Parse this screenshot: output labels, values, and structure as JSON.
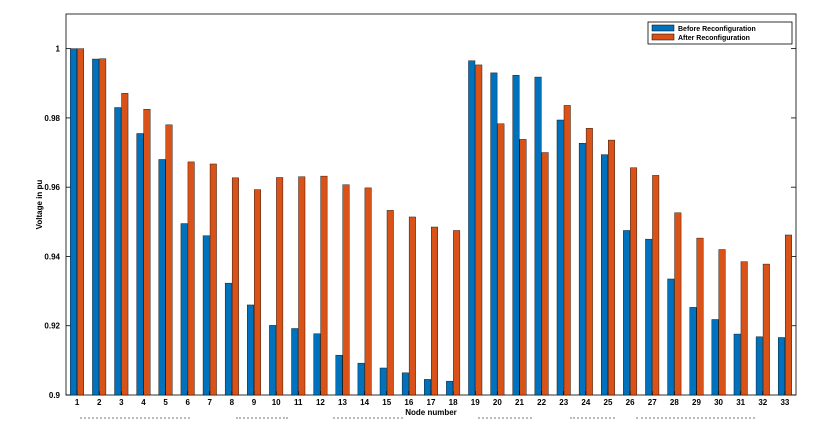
{
  "chart_data": {
    "type": "bar",
    "title": "",
    "xlabel": "Node number",
    "ylabel": "Voltage in pu",
    "ylim": [
      0.9,
      1.01
    ],
    "yticks": [
      "0.9",
      "0.92",
      "0.94",
      "0.96",
      "0.98",
      "1"
    ],
    "categories": [
      "1",
      "2",
      "3",
      "4",
      "5",
      "6",
      "7",
      "8",
      "9",
      "10",
      "11",
      "12",
      "13",
      "14",
      "15",
      "16",
      "17",
      "18",
      "19",
      "20",
      "21",
      "22",
      "23",
      "24",
      "25",
      "26",
      "27",
      "28",
      "29",
      "30",
      "31",
      "32",
      "33"
    ],
    "legend_position": "top-right",
    "series": [
      {
        "name": "Before Reconfiguration",
        "color": "#0072BD",
        "values": [
          1.0,
          0.997,
          0.983,
          0.9755,
          0.968,
          0.9495,
          0.946,
          0.9323,
          0.926,
          0.9201,
          0.9192,
          0.9177,
          0.9115,
          0.9092,
          0.9078,
          0.9064,
          0.9045,
          0.904,
          0.9965,
          0.993,
          0.9923,
          0.9918,
          0.9794,
          0.9727,
          0.9694,
          0.9475,
          0.945,
          0.9335,
          0.9253,
          0.9218,
          0.9176,
          0.9168,
          0.9166
        ]
      },
      {
        "name": "After Reconfiguration",
        "color": "#D95319",
        "values": [
          1.0,
          0.9971,
          0.9871,
          0.9825,
          0.978,
          0.9673,
          0.9667,
          0.9627,
          0.9593,
          0.9628,
          0.963,
          0.9632,
          0.9607,
          0.9598,
          0.9533,
          0.9514,
          0.9485,
          0.9475,
          0.9953,
          0.9783,
          0.9738,
          0.97,
          0.9836,
          0.977,
          0.9736,
          0.9656,
          0.9634,
          0.9526,
          0.9453,
          0.942,
          0.9385,
          0.9378,
          0.9462
        ]
      }
    ]
  }
}
